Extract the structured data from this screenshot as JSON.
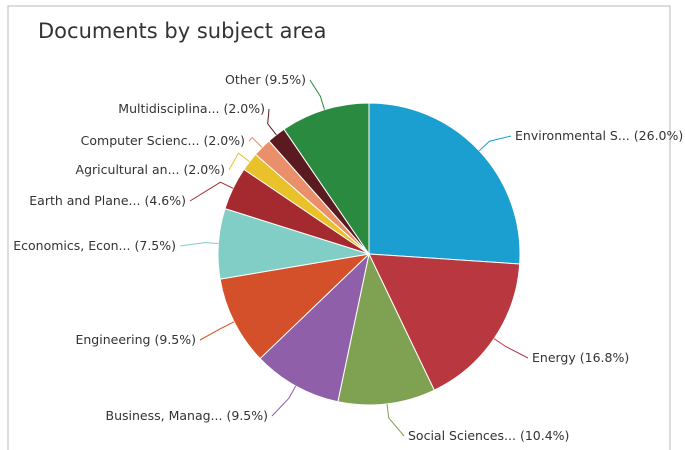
{
  "chart_data": {
    "type": "pie",
    "title": "Documents by subject area",
    "categories": [
      "Environmental S...",
      "Energy",
      "Social Sciences...",
      "Business, Manag...",
      "Engineering",
      "Economics, Econ...",
      "Earth and Plane...",
      "Agricultural an...",
      "Computer Scienc...",
      "Multidisciplina...",
      "Other"
    ],
    "values": [
      26.0,
      16.8,
      10.4,
      9.5,
      9.5,
      7.5,
      4.6,
      2.0,
      2.0,
      2.0,
      9.5
    ],
    "value_labels": [
      "(26.0%)",
      "(16.8%)",
      "(10.4%)",
      "(9.5%)",
      "(9.5%)",
      "(7.5%)",
      "(4.6%)",
      "(2.0%)",
      "(2.0%)",
      "(2.0%)",
      "(9.5%)"
    ],
    "colors": [
      "#1b9fd0",
      "#b9373f",
      "#7fa252",
      "#8f5fa9",
      "#d4502b",
      "#80cec5",
      "#a52a2f",
      "#e9c22b",
      "#e9906b",
      "#5b1a20",
      "#2a8a40"
    ]
  }
}
